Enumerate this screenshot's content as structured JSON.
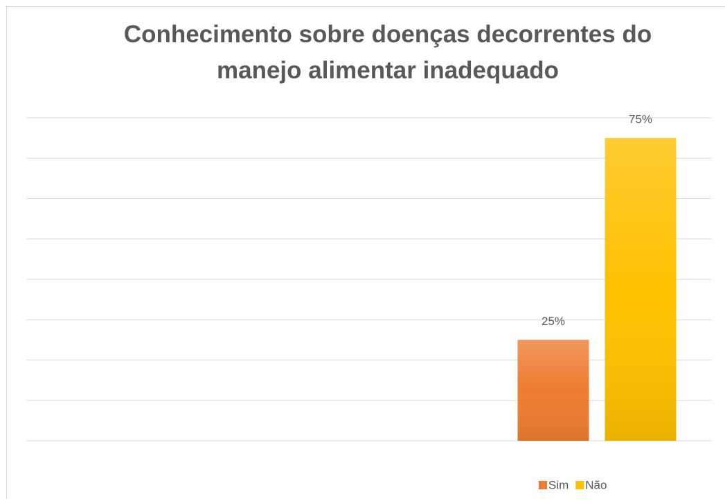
{
  "chart_data": {
    "type": "bar",
    "title": "Conhecimento sobre doenças decorrentes do manejo alimentar inadequado",
    "categories": [
      null
    ],
    "series": [
      {
        "name": "Sim",
        "color": "#ed7d31",
        "values": [
          25
        ],
        "value_labels": [
          "25%"
        ]
      },
      {
        "name": "Não",
        "color": "#ffc000",
        "values": [
          75
        ],
        "value_labels": [
          "75%"
        ]
      }
    ],
    "ylim": [
      0,
      80
    ],
    "yticks": [
      0,
      10,
      20,
      30,
      40,
      50,
      60,
      70,
      80
    ],
    "grid": true,
    "legend": "bottom"
  }
}
